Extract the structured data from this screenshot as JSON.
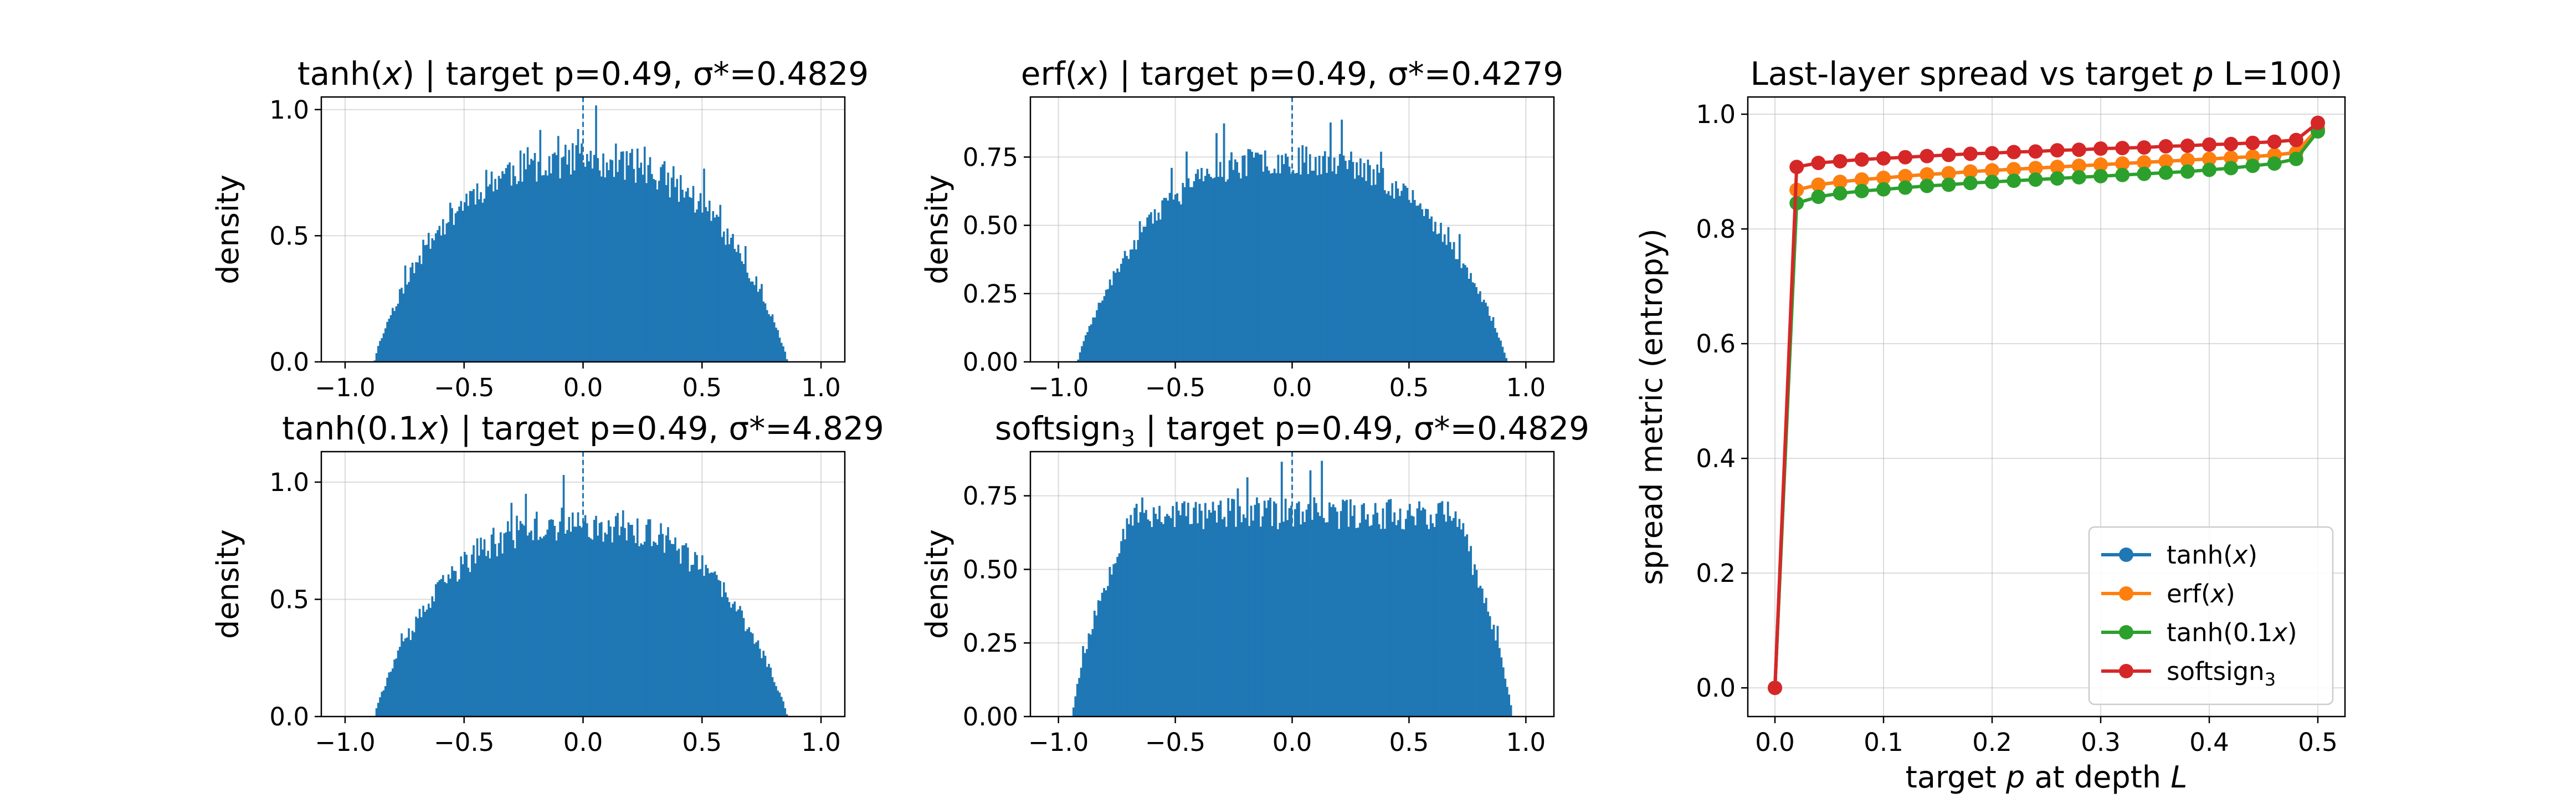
{
  "figure": {
    "hist_color": "#1f77b4",
    "grid_color": "#b0b0b0"
  },
  "chart_data": [
    {
      "type": "bar",
      "title_prefix": "tanh(",
      "title_var": "x",
      "title_suffix": ") | target p=0.49,  σ*=0.4829",
      "ylabel": "density",
      "xlim": [
        -1.1,
        1.1
      ],
      "ylim": [
        0,
        1.05
      ],
      "xticks": [
        "−1.0",
        "−0.5",
        "0.0",
        "0.5",
        "1.0"
      ],
      "yticks": [
        "0.0",
        "0.5",
        "1.0"
      ],
      "ytick_values": [
        0.0,
        0.5,
        1.0
      ],
      "support": [
        -0.88,
        0.86
      ],
      "hist": {
        "shape": "dome",
        "top": 0.8,
        "noise": 0.075,
        "bins": 230,
        "seed": 11
      },
      "vline_x": 0.0
    },
    {
      "type": "bar",
      "title_prefix": "erf(",
      "title_var": "x",
      "title_suffix": ") | target p=0.49,  σ*=0.4279",
      "ylabel": "density",
      "xlim": [
        -1.12,
        1.12
      ],
      "ylim": [
        0,
        0.97
      ],
      "xticks": [
        "−1.0",
        "−0.5",
        "0.0",
        "0.5",
        "1.0"
      ],
      "yticks": [
        "0.00",
        "0.25",
        "0.50",
        "0.75"
      ],
      "ytick_values": [
        0.0,
        0.25,
        0.5,
        0.75
      ],
      "support": [
        -0.92,
        0.92
      ],
      "hist": {
        "shape": "dome",
        "top": 0.74,
        "noise": 0.055,
        "bins": 230,
        "seed": 23
      },
      "vline_x": 0.0
    },
    {
      "type": "bar",
      "title_prefix": "tanh(0.1",
      "title_var": "x",
      "title_suffix": ") | target p=0.49,  σ*=4.829",
      "ylabel": "density",
      "xlim": [
        -1.1,
        1.1
      ],
      "ylim": [
        0,
        1.13
      ],
      "xticks": [
        "−1.0",
        "−0.5",
        "0.0",
        "0.5",
        "1.0"
      ],
      "yticks": [
        "0.0",
        "0.5",
        "1.0"
      ],
      "ytick_values": [
        0.0,
        0.5,
        1.0
      ],
      "support": [
        -0.88,
        0.86
      ],
      "hist": {
        "shape": "dome",
        "top": 0.82,
        "noise": 0.075,
        "bins": 230,
        "seed": 37
      },
      "vline_x": 0.0
    },
    {
      "type": "bar",
      "title_prefix": "softsign",
      "title_sub": "3",
      "title_suffix": "  | target p=0.49,  σ*=0.4829",
      "ylabel": "density",
      "xlim": [
        -1.12,
        1.12
      ],
      "ylim": [
        0,
        0.9
      ],
      "xticks": [
        "−1.0",
        "−0.5",
        "0.0",
        "0.5",
        "1.0"
      ],
      "yticks": [
        "0.00",
        "0.25",
        "0.50",
        "0.75"
      ],
      "ytick_values": [
        0.0,
        0.25,
        0.5,
        0.75
      ],
      "support": [
        -0.94,
        0.94
      ],
      "hist": {
        "shape": "plateau",
        "top": 0.69,
        "noise": 0.055,
        "bins": 230,
        "seed": 53
      },
      "vline_x": 0.0
    },
    {
      "type": "line",
      "title_prefix": "Last-layer spread vs target ",
      "title_var": "p",
      "title_suffix": " L=100)",
      "xlabel_prefix": "target ",
      "xlabel_var": "p",
      "xlabel_mid": " at depth ",
      "xlabel_var2": "L",
      "ylabel": "spread metric (entropy)",
      "xlim": [
        -0.025,
        0.525
      ],
      "ylim": [
        -0.05,
        1.03
      ],
      "xticks": [
        "0.0",
        "0.1",
        "0.2",
        "0.3",
        "0.4",
        "0.5"
      ],
      "xtick_values": [
        0.0,
        0.1,
        0.2,
        0.3,
        0.4,
        0.5
      ],
      "yticks": [
        "0.0",
        "0.2",
        "0.4",
        "0.6",
        "0.8",
        "1.0"
      ],
      "ytick_values": [
        0.0,
        0.2,
        0.4,
        0.6,
        0.8,
        1.0
      ],
      "grid": true,
      "legend_position": "lower-right",
      "x": [
        0.0,
        0.02,
        0.04,
        0.06,
        0.08,
        0.1,
        0.12,
        0.14,
        0.16,
        0.18,
        0.2,
        0.22,
        0.24,
        0.26,
        0.28,
        0.3,
        0.32,
        0.34,
        0.36,
        0.38,
        0.4,
        0.42,
        0.44,
        0.46,
        0.48,
        0.5
      ],
      "series": [
        {
          "name_prefix": "tanh(",
          "name_var": "x",
          "name_suffix": ")",
          "color": "#1f77b4",
          "values": [
            0.0,
            0.868,
            0.877,
            0.882,
            0.886,
            0.889,
            0.892,
            0.895,
            0.897,
            0.9,
            0.902,
            0.904,
            0.906,
            0.908,
            0.91,
            0.912,
            0.914,
            0.916,
            0.918,
            0.92,
            0.922,
            0.924,
            0.926,
            0.929,
            0.933,
            0.975
          ]
        },
        {
          "name_prefix": "erf(",
          "name_var": "x",
          "name_suffix": ")",
          "color": "#ff7f0e",
          "values": [
            0.0,
            0.868,
            0.877,
            0.882,
            0.886,
            0.889,
            0.892,
            0.895,
            0.897,
            0.9,
            0.902,
            0.904,
            0.906,
            0.908,
            0.91,
            0.912,
            0.914,
            0.916,
            0.918,
            0.92,
            0.922,
            0.924,
            0.926,
            0.929,
            0.933,
            0.975
          ]
        },
        {
          "name_prefix": "tanh(0.1",
          "name_var": "x",
          "name_suffix": ")",
          "color": "#2ca02c",
          "values": [
            0.0,
            0.845,
            0.856,
            0.862,
            0.866,
            0.869,
            0.872,
            0.875,
            0.877,
            0.88,
            0.882,
            0.884,
            0.886,
            0.888,
            0.89,
            0.892,
            0.894,
            0.896,
            0.898,
            0.9,
            0.903,
            0.906,
            0.91,
            0.914,
            0.922,
            0.97
          ]
        },
        {
          "name_prefix": "softsign",
          "name_sub": "3",
          "name_suffix": "",
          "color": "#d62728",
          "values": [
            0.0,
            0.908,
            0.915,
            0.918,
            0.921,
            0.923,
            0.925,
            0.927,
            0.929,
            0.931,
            0.932,
            0.934,
            0.935,
            0.937,
            0.938,
            0.94,
            0.941,
            0.942,
            0.944,
            0.945,
            0.947,
            0.948,
            0.95,
            0.952,
            0.955,
            0.985
          ]
        }
      ]
    }
  ]
}
